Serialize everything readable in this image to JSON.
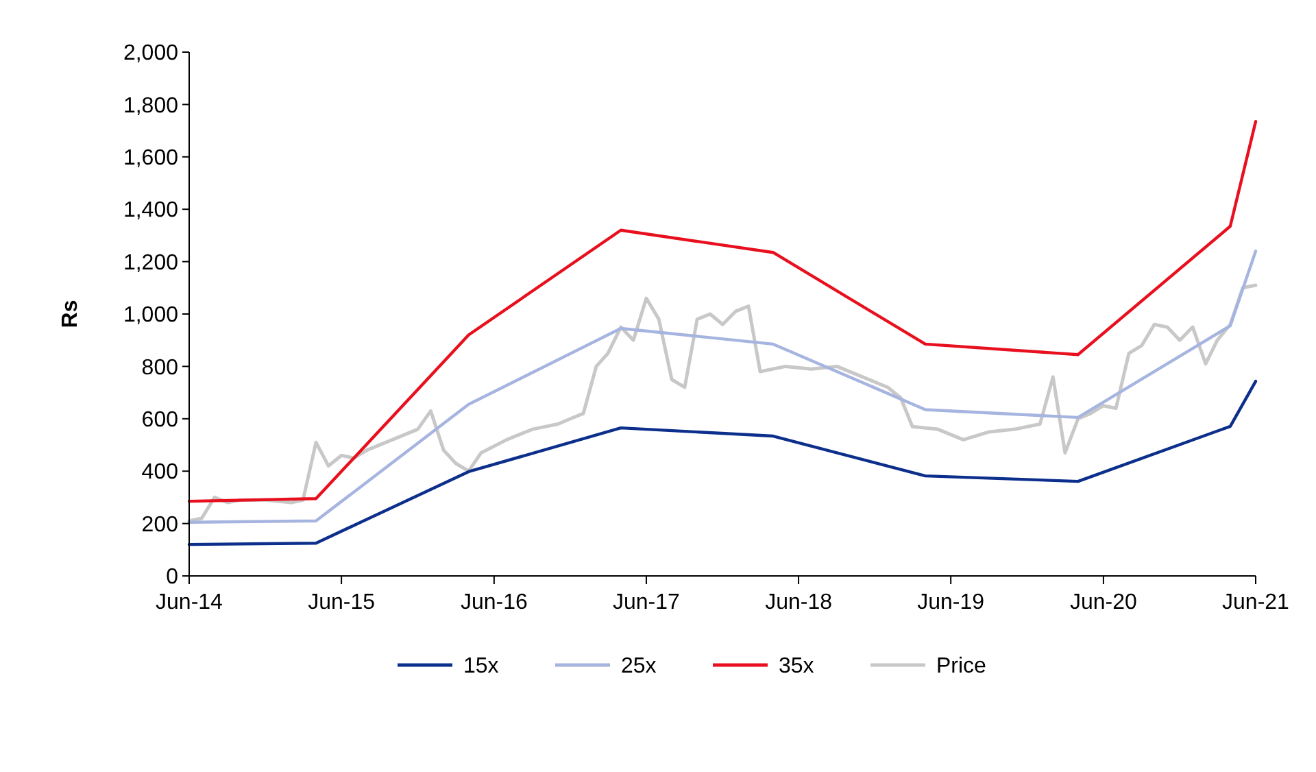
{
  "chart_data": {
    "type": "line",
    "ylabel": "Rs",
    "legend": "bottom",
    "grid": false,
    "marker": "none",
    "line_style": "solid",
    "xlim": [
      "2014-06",
      "2021-06"
    ],
    "xticks": [
      {
        "value": "2014-06",
        "label": "Jun-14"
      },
      {
        "value": "2015-06",
        "label": "Jun-15"
      },
      {
        "value": "2016-06",
        "label": "Jun-16"
      },
      {
        "value": "2017-06",
        "label": "Jun-17"
      },
      {
        "value": "2018-06",
        "label": "Jun-18"
      },
      {
        "value": "2019-06",
        "label": "Jun-19"
      },
      {
        "value": "2020-06",
        "label": "Jun-20"
      },
      {
        "value": "2021-06",
        "label": "Jun-21"
      }
    ],
    "ylim": [
      0,
      2000
    ],
    "yticks": [
      0,
      200,
      400,
      600,
      800,
      {
        "value": 1000,
        "label": "1,000"
      },
      {
        "value": 1200,
        "label": "1,200"
      },
      {
        "value": 1400,
        "label": "1,400"
      },
      {
        "value": 1600,
        "label": "1,600"
      },
      {
        "value": 1800,
        "label": "1,800"
      },
      {
        "value": 2000,
        "label": "2,000"
      }
    ],
    "x": [
      "2014-06",
      "2015-04",
      "2016-04",
      "2017-04",
      "2018-04",
      "2019-04",
      "2020-04",
      "2021-04",
      "2021-06"
    ],
    "series": [
      {
        "name": "15x",
        "color": "#0d2f8c",
        "values": [
          120,
          125,
          398,
          565,
          534,
          382,
          361,
          571,
          743
        ]
      },
      {
        "name": "25x",
        "color": "#a6b4e0",
        "values": [
          205,
          210,
          655,
          945,
          885,
          635,
          605,
          955,
          1240
        ]
      },
      {
        "name": "35x",
        "color": "#e8101e",
        "values": [
          285,
          295,
          920,
          1320,
          1235,
          885,
          845,
          1335,
          1735
        ]
      },
      {
        "name": "Price",
        "color": "#c8c8c8",
        "x": [
          "2014-06",
          "2014-07",
          "2014-08",
          "2014-09",
          "2014-10",
          "2014-12",
          "2015-02",
          "2015-03",
          "2015-04",
          "2015-05",
          "2015-06",
          "2015-07",
          "2015-08",
          "2015-10",
          "2015-12",
          "2016-01",
          "2016-02",
          "2016-03",
          "2016-04",
          "2016-05",
          "2016-07",
          "2016-09",
          "2016-11",
          "2016-12",
          "2017-01",
          "2017-02",
          "2017-03",
          "2017-04",
          "2017-05",
          "2017-06",
          "2017-07",
          "2017-08",
          "2017-09",
          "2017-10",
          "2017-11",
          "2017-12",
          "2018-01",
          "2018-02",
          "2018-03",
          "2018-05",
          "2018-07",
          "2018-09",
          "2018-11",
          "2019-01",
          "2019-02",
          "2019-03",
          "2019-05",
          "2019-07",
          "2019-09",
          "2019-11",
          "2020-01",
          "2020-02",
          "2020-03",
          "2020-04",
          "2020-05",
          "2020-06",
          "2020-07",
          "2020-08",
          "2020-09",
          "2020-10",
          "2020-11",
          "2020-12",
          "2021-01",
          "2021-02",
          "2021-03",
          "2021-04",
          "2021-05",
          "2021-06"
        ],
        "values": [
          210,
          220,
          300,
          280,
          290,
          290,
          280,
          290,
          510,
          420,
          460,
          450,
          480,
          520,
          560,
          630,
          480,
          430,
          400,
          470,
          520,
          560,
          580,
          600,
          620,
          800,
          850,
          950,
          900,
          1060,
          980,
          750,
          720,
          980,
          1000,
          960,
          1010,
          1030,
          780,
          800,
          790,
          800,
          760,
          720,
          680,
          570,
          560,
          520,
          550,
          560,
          580,
          760,
          470,
          600,
          620,
          650,
          640,
          850,
          880,
          960,
          950,
          900,
          950,
          810,
          900,
          960,
          1100,
          1110
        ]
      }
    ]
  }
}
